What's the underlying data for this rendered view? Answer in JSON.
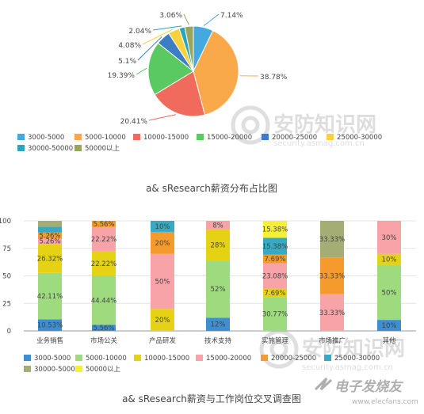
{
  "charts": {
    "pie": {
      "caption": "a& sResearch薪资分布占比图",
      "legend": [
        "3000-5000",
        "5000-10000",
        "10000-15000",
        "15000-20000",
        "20000-25000",
        "25000-30000",
        "30000-50000",
        "50000以上"
      ],
      "labels": [
        "7.14%",
        "38.78%",
        "20.41%",
        "19.39%",
        "5.1%",
        "4.08%",
        "2.04%",
        "3.06%"
      ]
    },
    "bar": {
      "caption": "a& sResearch薪资与工作岗位交叉调查图",
      "legend": [
        "3000-5000",
        "5000-10000",
        "10000-15000",
        "15000-20000",
        "20000-25000",
        "25000-30000",
        "30000-50000",
        "50000以上"
      ],
      "y_ticks": [
        "100",
        "75",
        "50",
        "25",
        "0"
      ],
      "categories": [
        "业务销售",
        "市场公关",
        "产品研发",
        "技术支持",
        "实施管理",
        "市场推广",
        "其他"
      ]
    }
  },
  "watermarks": [
    "安防知识网",
    "security.asmag.com.cn",
    "电子发烧友",
    "www.elecfans.com"
  ],
  "colors": {
    "3000-5000": "#45a9e0",
    "5000-10000": "#f9a84a",
    "10000-15000": "#f06b5c",
    "15000-20000": "#5bc962",
    "20000-25000": "#3c7ec4",
    "25000-30000": "#f7d23c",
    "30000-50000": "#2aa6b8",
    "50000以上": "#9aa55c",
    "bar_3000-5000": "#3d8fd1",
    "bar_5000-10000": "#9ddb7e",
    "bar_10000-15000": "#e5d214",
    "bar_15000-20000": "#f7a3a8",
    "bar_20000-25000": "#f59a2d",
    "bar_25000-30000": "#36a9c4",
    "bar_30000-50000": "#a4ad73",
    "bar_50000以上": "#f5f034"
  },
  "chart_data": [
    {
      "type": "pie",
      "title": "a& sResearch薪资分布占比图",
      "categories": [
        "3000-5000",
        "5000-10000",
        "10000-15000",
        "15000-20000",
        "20000-25000",
        "25000-30000",
        "30000-50000",
        "50000以上"
      ],
      "values": [
        7.14,
        38.78,
        20.41,
        19.39,
        5.1,
        4.08,
        2.04,
        3.06
      ],
      "legend": "bottom"
    },
    {
      "type": "bar",
      "stacked": true,
      "title": "a& sResearch薪资与工作岗位交叉调查图",
      "categories": [
        "业务销售",
        "市场公关",
        "产品研发",
        "技术支持",
        "实施管理",
        "市场推广",
        "其他"
      ],
      "ylim": [
        0,
        100
      ],
      "legend": "bottom",
      "series": [
        {
          "name": "3000-5000",
          "values": [
            10.53,
            5.56,
            0,
            12,
            0,
            0,
            10
          ]
        },
        {
          "name": "5000-10000",
          "values": [
            42.11,
            44.44,
            0,
            52,
            30.77,
            0,
            50
          ]
        },
        {
          "name": "10000-15000",
          "values": [
            26.32,
            22.22,
            20,
            28,
            7.69,
            0,
            10
          ]
        },
        {
          "name": "15000-20000",
          "values": [
            5.26,
            22.22,
            50,
            8,
            23.08,
            33.33,
            30
          ]
        },
        {
          "name": "20000-25000",
          "values": [
            5.26,
            5.56,
            20,
            0,
            7.69,
            33.33,
            0
          ]
        },
        {
          "name": "25000-30000",
          "values": [
            5.26,
            0,
            10,
            0,
            15.38,
            0,
            0
          ]
        },
        {
          "name": "30000-50000",
          "values": [
            5.26,
            0,
            0,
            0,
            0,
            33.33,
            0
          ]
        },
        {
          "name": "50000以上",
          "values": [
            0,
            0,
            0,
            0,
            15.38,
            0,
            0
          ]
        }
      ],
      "data_labels": [
        [
          "10.53%",
          "42.11%",
          "26.32%",
          "5.26%",
          "5.26%",
          "",
          ""
        ],
        [
          "5.56%",
          "44.44%",
          "22.22%",
          "22.22%",
          "5.56%",
          "",
          ""
        ],
        [
          "",
          "",
          "20%",
          "50%",
          "20%",
          "10%",
          ""
        ],
        [
          "12%",
          "52%",
          "28%",
          "8%",
          "",
          "",
          ""
        ],
        [
          "",
          "30.77%",
          "7.69%",
          "23.08%",
          "7.69%",
          "15.38%",
          "",
          "15.38%"
        ],
        [
          "",
          "",
          "",
          "33.33%",
          "33.33%",
          "",
          "33.33%",
          ""
        ],
        [
          "10%",
          "50%",
          "10%",
          "30%",
          "",
          "",
          "",
          ""
        ]
      ]
    }
  ]
}
